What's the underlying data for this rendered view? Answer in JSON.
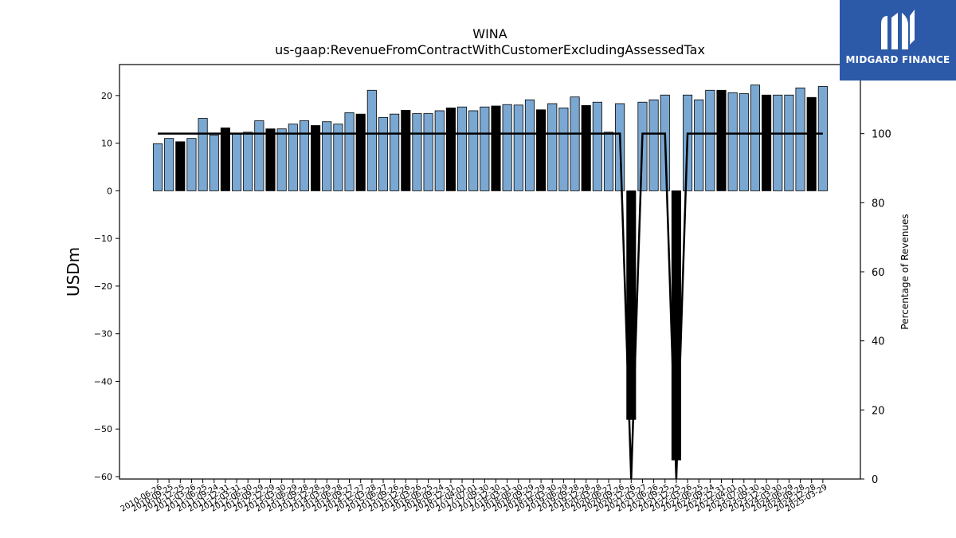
{
  "brand": {
    "name": "MIDGARD FINANCE"
  },
  "chart_data": {
    "type": "bar",
    "title": "WINA",
    "subtitle": "us-gaap:RevenueFromContractWithCustomerExcludingAssessedTax",
    "ylabel": "USDm",
    "y2label": "Percentage of Revenues",
    "ylim": [
      -60.5,
      26.5
    ],
    "y2lim": [
      0,
      120
    ],
    "yticks": [
      -60,
      -50,
      -40,
      -30,
      -20,
      -10,
      0,
      10,
      20
    ],
    "y2ticks": [
      0,
      20,
      40,
      60,
      80,
      100
    ],
    "grid": false,
    "colors": {
      "quarter": "#7aa8d2",
      "annual": "#000000",
      "line": "#000000"
    },
    "categories": [
      "2010-06-26",
      "2010-09-25",
      "2010-12-25",
      "2011-03-26",
      "2011-06-25",
      "2011-09-24",
      "2011-12-31",
      "2012-03-31",
      "2012-06-30",
      "2012-09-29",
      "2012-12-29",
      "2013-03-30",
      "2013-06-29",
      "2013-09-28",
      "2013-12-28",
      "2014-03-29",
      "2014-06-28",
      "2014-09-27",
      "2014-12-27",
      "2015-03-28",
      "2015-06-27",
      "2015-09-26",
      "2015-12-26",
      "2016-03-26",
      "2016-06-25",
      "2016-09-24",
      "2016-12-31",
      "2017-04-01",
      "2017-07-01",
      "2017-09-30",
      "2017-12-30",
      "2018-03-31",
      "2018-06-30",
      "2018-09-29",
      "2018-12-29",
      "2019-03-30",
      "2019-06-29",
      "2019-09-28",
      "2019-12-28",
      "2020-03-28",
      "2020-06-27",
      "2020-09-26",
      "2020-12-26",
      "2021-03-27",
      "2021-06-26",
      "2021-09-25",
      "2021-12-25",
      "2022-03-26",
      "2022-06-25",
      "2022-09-24",
      "2022-12-31",
      "2023-04-01",
      "2023-07-01",
      "2023-09-30",
      "2023-12-30",
      "2024-03-30",
      "2024-06-29",
      "2024-09-28",
      "2024-12-28",
      "2025-03-29"
    ],
    "tick_labels": [
      "2010-06-26",
      "2010-09-25",
      "2010-12-25",
      "2011-03-26",
      "2011-06-25",
      "2011-09-24",
      "2011-12-31",
      "2012-03-31",
      "2012-06-30",
      "2012-09-29",
      "2012-12-29",
      "2013-03-30",
      "2013-06-29",
      "2013-09-28",
      "2013-12-28",
      "2014-03-29",
      "2014-06-28",
      "2014-09-27",
      "2014-12-27",
      "2015-03-28",
      "2015-06-27",
      "2015-09-26",
      "2015-12-26",
      "2016-03-26",
      "2016-06-25",
      "2016-09-24",
      "2016-12-31",
      "2017-04-01",
      "2017-07-01",
      "2017-09-30",
      "2017-12-30",
      "2018-03-31",
      "2018-06-30",
      "2018-09-29",
      "2018-12-29",
      "2019-03-30",
      "2019-06-29",
      "2019-09-28",
      "2019-12-28",
      "2020-03-28",
      "2020-06-27",
      "2020-09-26",
      "2020-12-26",
      "2021-03-27",
      "2021-06-26",
      "2021-09-25",
      "2021-12-25",
      "2022-03-26",
      "2022-06-25",
      "2022-09-24",
      "2022-12-31",
      "2023-04-01",
      "2023-07-01",
      "2023-09-30",
      "2023-12-30",
      "2024-03-30",
      "2024-06-29",
      "2024-09-28",
      "2024-12-28",
      "2025-03-29"
    ],
    "values": [
      9.9,
      11.0,
      10.3,
      11.0,
      15.2,
      11.7,
      13.2,
      11.9,
      12.3,
      14.7,
      13.0,
      13.0,
      14.0,
      14.7,
      13.7,
      14.5,
      14.0,
      16.4,
      16.1,
      21.1,
      15.4,
      16.1,
      16.9,
      16.2,
      16.2,
      16.8,
      17.4,
      17.6,
      16.8,
      17.6,
      17.8,
      18.1,
      18.0,
      19.1,
      17.0,
      18.3,
      17.4,
      19.7,
      17.9,
      18.6,
      12.3,
      18.3,
      -48.0,
      18.6,
      19.1,
      20.1,
      -56.5,
      20.1,
      19.1,
      21.1,
      21.1,
      20.6,
      20.4,
      22.2,
      20.1,
      20.1,
      20.1,
      21.6,
      19.6,
      21.9
    ],
    "annual": [
      false,
      false,
      true,
      false,
      false,
      false,
      true,
      false,
      false,
      false,
      true,
      false,
      false,
      false,
      true,
      false,
      false,
      false,
      true,
      false,
      false,
      false,
      true,
      false,
      false,
      false,
      true,
      false,
      false,
      false,
      true,
      false,
      false,
      false,
      true,
      false,
      false,
      false,
      true,
      false,
      false,
      false,
      true,
      false,
      false,
      false,
      true,
      false,
      false,
      false,
      true,
      false,
      false,
      false,
      true,
      false,
      false,
      false,
      true,
      false
    ],
    "pct_of_revenues": [
      100,
      100,
      100,
      100,
      100,
      100,
      100,
      100,
      100,
      100,
      100,
      100,
      100,
      100,
      100,
      100,
      100,
      100,
      100,
      100,
      100,
      100,
      100,
      100,
      100,
      100,
      100,
      100,
      100,
      100,
      100,
      100,
      100,
      100,
      100,
      100,
      100,
      100,
      100,
      100,
      100,
      100,
      0,
      100,
      100,
      100,
      0,
      100,
      100,
      100,
      100,
      100,
      100,
      100,
      100,
      100,
      100,
      100,
      100,
      100
    ]
  }
}
